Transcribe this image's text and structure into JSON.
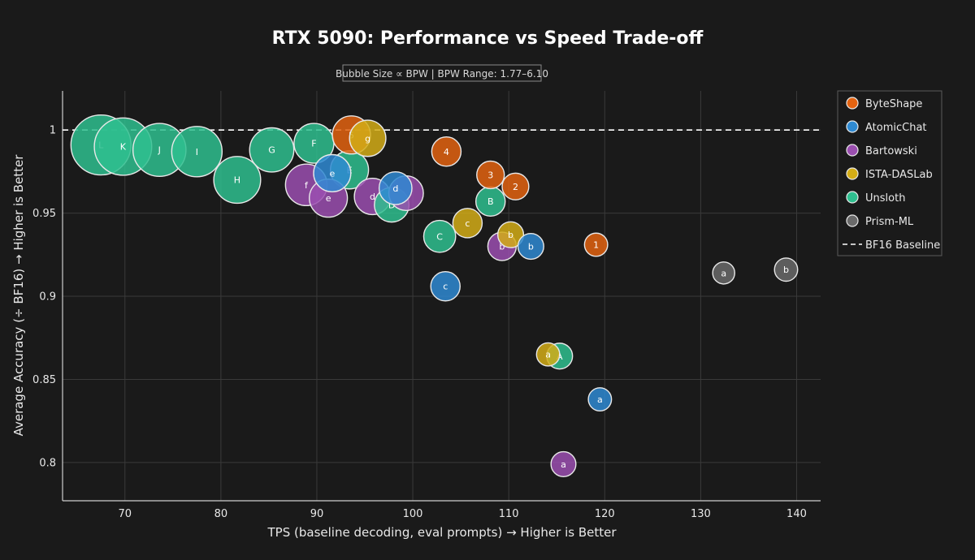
{
  "chart_data": {
    "type": "scatter",
    "title": "RTX 5090: Performance vs Speed Trade-off",
    "subtitle": "Bubble Size ∝ BPW | BPW Range: 1.77–6.10",
    "xlabel": "TPS (baseline decoding, eval prompts) → Higher is Better",
    "ylabel": "Average Accuracy (÷ BF16) → Higher is Better",
    "xlim": [
      63.5,
      142.5
    ],
    "ylim": [
      0.777,
      1.0235
    ],
    "xticks": [
      70,
      80,
      90,
      100,
      110,
      120,
      130,
      140
    ],
    "yticks": [
      0.8,
      0.85,
      0.9,
      0.95,
      1
    ],
    "ytick_labels": [
      "0.8",
      "0.85",
      "0.9",
      "0.95",
      "1"
    ],
    "grid": true,
    "legend_position": "top-right",
    "baseline": {
      "name": "BF16 Baseline",
      "y": 1.0,
      "style": "dashed"
    },
    "series": [
      {
        "name": "Unsloth",
        "color": "#2fbf8f",
        "points": [
          {
            "label": "L",
            "x": 67.5,
            "y": 0.991,
            "bpw": 6.1
          },
          {
            "label": "K",
            "x": 69.8,
            "y": 0.99,
            "bpw": 5.8
          },
          {
            "label": "J",
            "x": 73.6,
            "y": 0.988,
            "bpw": 5.3
          },
          {
            "label": "I",
            "x": 77.5,
            "y": 0.987,
            "bpw": 5.0
          },
          {
            "label": "H",
            "x": 81.7,
            "y": 0.97,
            "bpw": 4.6
          },
          {
            "label": "G",
            "x": 85.3,
            "y": 0.988,
            "bpw": 4.3
          },
          {
            "label": "F",
            "x": 89.7,
            "y": 0.992,
            "bpw": 3.8
          },
          {
            "label": "E",
            "x": 93.4,
            "y": 0.976,
            "bpw": 3.6
          },
          {
            "label": "D",
            "x": 97.8,
            "y": 0.955,
            "bpw": 3.2
          },
          {
            "label": "C",
            "x": 102.8,
            "y": 0.936,
            "bpw": 2.9
          },
          {
            "label": "B",
            "x": 108.1,
            "y": 0.957,
            "bpw": 2.6
          },
          {
            "label": "A",
            "x": 115.3,
            "y": 0.864,
            "bpw": 2.2
          }
        ]
      },
      {
        "name": "Bartowski",
        "color": "#9b4fb0",
        "points": [
          {
            "label": "f",
            "x": 88.9,
            "y": 0.967,
            "bpw": 4.0
          },
          {
            "label": "e",
            "x": 91.2,
            "y": 0.959,
            "bpw": 3.6
          },
          {
            "label": "d",
            "x": 95.8,
            "y": 0.96,
            "bpw": 3.4
          },
          {
            "label": "",
            "x": 99.3,
            "y": 0.962,
            "bpw": 3.2
          },
          {
            "label": "b",
            "x": 109.3,
            "y": 0.93,
            "bpw": 2.5
          },
          {
            "label": "a",
            "x": 115.7,
            "y": 0.799,
            "bpw": 2.1
          }
        ]
      },
      {
        "name": "ISTA-DASLab",
        "color": "#d4ad17",
        "points": [
          {
            "label": "g",
            "x": 95.3,
            "y": 0.995,
            "bpw": 3.4
          },
          {
            "label": "c",
            "x": 105.7,
            "y": 0.944,
            "bpw": 2.6
          },
          {
            "label": "b",
            "x": 110.2,
            "y": 0.937,
            "bpw": 2.2
          },
          {
            "label": "a",
            "x": 114.1,
            "y": 0.865,
            "bpw": 1.9
          }
        ]
      },
      {
        "name": "ByteShape",
        "color": "#e36311",
        "points": [
          {
            "label": "5",
            "x": 93.6,
            "y": 0.997,
            "bpw": 3.6
          },
          {
            "label": "4",
            "x": 103.5,
            "y": 0.987,
            "bpw": 2.6
          },
          {
            "label": "3",
            "x": 108.1,
            "y": 0.973,
            "bpw": 2.4
          },
          {
            "label": "2",
            "x": 110.7,
            "y": 0.966,
            "bpw": 2.3
          },
          {
            "label": "1",
            "x": 119.1,
            "y": 0.931,
            "bpw": 1.9
          }
        ]
      },
      {
        "name": "AtomicChat",
        "color": "#2f8ad2",
        "points": [
          {
            "label": "e",
            "x": 91.6,
            "y": 0.974,
            "bpw": 3.5
          },
          {
            "label": "d",
            "x": 98.2,
            "y": 0.965,
            "bpw": 3.0
          },
          {
            "label": "c",
            "x": 103.4,
            "y": 0.906,
            "bpw": 2.6
          },
          {
            "label": "b",
            "x": 112.3,
            "y": 0.93,
            "bpw": 2.2
          },
          {
            "label": "a",
            "x": 119.5,
            "y": 0.838,
            "bpw": 1.9
          }
        ]
      },
      {
        "name": "Prism-ML",
        "color": "#6a6a6a",
        "points": [
          {
            "label": "a",
            "x": 132.4,
            "y": 0.914,
            "bpw": 1.77
          },
          {
            "label": "b",
            "x": 138.9,
            "y": 0.916,
            "bpw": 1.9
          }
        ]
      }
    ],
    "legend_order": [
      "ByteShape",
      "AtomicChat",
      "Bartowski",
      "ISTA-DASLab",
      "Unsloth",
      "Prism-ML"
    ]
  },
  "colors": {
    "background": "#1a1a1a",
    "grid": "#3a3a3a",
    "axis": "#cfcfcf",
    "text": "#e8e8e8",
    "bubble_edge": "#e8e8e8"
  }
}
